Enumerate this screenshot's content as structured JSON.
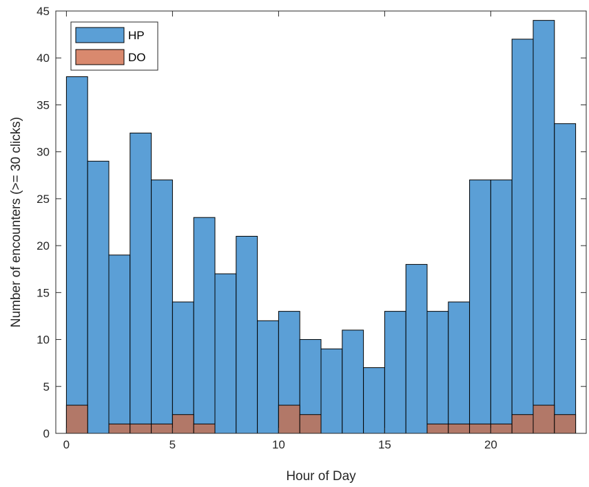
{
  "chart_data": {
    "type": "bar",
    "stacking": "overlay",
    "x_edges": [
      0,
      1,
      2,
      3,
      4,
      5,
      6,
      7,
      8,
      9,
      10,
      11,
      12,
      13,
      14,
      15,
      16,
      17,
      18,
      19,
      20,
      21,
      22,
      23,
      24
    ],
    "series": [
      {
        "name": "HP",
        "color": "#5B9FD6",
        "values": [
          38,
          29,
          19,
          32,
          27,
          14,
          23,
          17,
          21,
          12,
          13,
          10,
          9,
          11,
          7,
          13,
          18,
          13,
          14,
          27,
          27,
          42,
          44,
          33
        ]
      },
      {
        "name": "DO",
        "color": "#D9896E",
        "values": [
          3,
          0,
          1,
          1,
          1,
          2,
          1,
          0,
          0,
          0,
          3,
          2,
          0,
          0,
          0,
          0,
          0,
          1,
          1,
          1,
          1,
          2,
          3,
          2
        ]
      }
    ],
    "overlap_color": "#B27868",
    "xlabel": "Hour of Day",
    "ylabel": "Number of encounters (>= 30 clicks)",
    "xlim": [
      -0.5,
      24.5
    ],
    "ylim": [
      0,
      45
    ],
    "xticks": [
      0,
      5,
      10,
      15,
      20
    ],
    "yticks": [
      0,
      5,
      10,
      15,
      20,
      25,
      30,
      35,
      40,
      45
    ],
    "legend_placement": "top-left",
    "grid": false
  }
}
